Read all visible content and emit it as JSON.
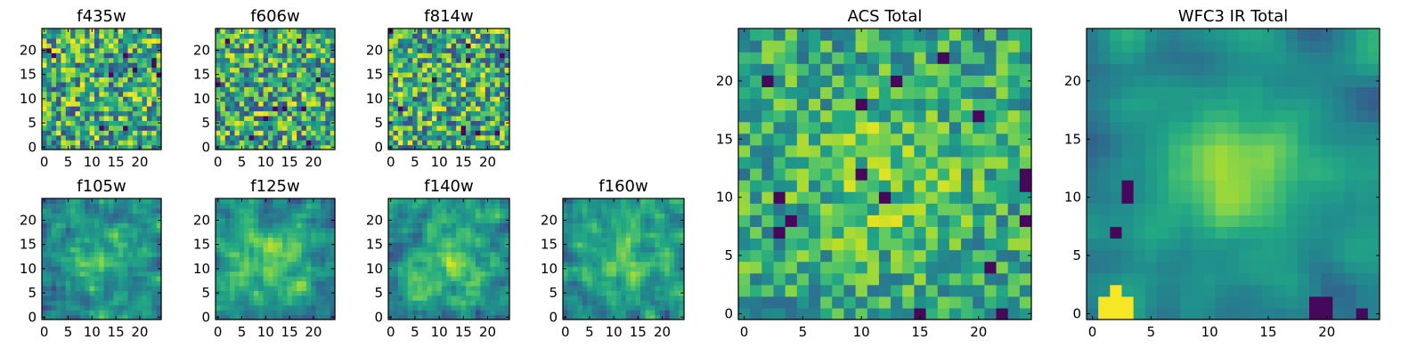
{
  "chart_data": [
    {
      "type": "heatmap",
      "title": "f435w",
      "nx": 25,
      "ny": 25,
      "xlim": [
        -0.5,
        24.5
      ],
      "ylim": [
        -0.5,
        24.5
      ],
      "xticks": [
        0,
        5,
        10,
        15,
        20
      ],
      "yticks": [
        0,
        5,
        10,
        15,
        20
      ],
      "colormap": "viridis",
      "seed": 11,
      "smooth": 0,
      "pattern": "noise"
    },
    {
      "type": "heatmap",
      "title": "f606w",
      "nx": 25,
      "ny": 25,
      "xlim": [
        -0.5,
        24.5
      ],
      "ylim": [
        -0.5,
        24.5
      ],
      "xticks": [
        0,
        5,
        10,
        15,
        20
      ],
      "yticks": [
        0,
        5,
        10,
        15,
        20
      ],
      "colormap": "viridis",
      "seed": 23,
      "smooth": 0,
      "pattern": "noise"
    },
    {
      "type": "heatmap",
      "title": "f814w",
      "nx": 25,
      "ny": 25,
      "xlim": [
        -0.5,
        24.5
      ],
      "ylim": [
        -0.5,
        24.5
      ],
      "xticks": [
        0,
        5,
        10,
        15,
        20
      ],
      "yticks": [
        0,
        5,
        10,
        15,
        20
      ],
      "colormap": "viridis",
      "seed": 37,
      "smooth": 0,
      "pattern": "noise"
    },
    {
      "type": "heatmap",
      "title": "f105w",
      "nx": 25,
      "ny": 25,
      "xlim": [
        -0.5,
        24.5
      ],
      "ylim": [
        -0.5,
        24.5
      ],
      "xticks": [
        0,
        5,
        10,
        15,
        20
      ],
      "yticks": [
        0,
        5,
        10,
        15,
        20
      ],
      "colormap": "viridis",
      "seed": 41,
      "smooth": 1,
      "pattern": "blob"
    },
    {
      "type": "heatmap",
      "title": "f125w",
      "nx": 25,
      "ny": 25,
      "xlim": [
        -0.5,
        24.5
      ],
      "ylim": [
        -0.5,
        24.5
      ],
      "xticks": [
        0,
        5,
        10,
        15,
        20
      ],
      "yticks": [
        0,
        5,
        10,
        15,
        20
      ],
      "colormap": "viridis",
      "seed": 53,
      "smooth": 1,
      "pattern": "blob"
    },
    {
      "type": "heatmap",
      "title": "f140w",
      "nx": 25,
      "ny": 25,
      "xlim": [
        -0.5,
        24.5
      ],
      "ylim": [
        -0.5,
        24.5
      ],
      "xticks": [
        0,
        5,
        10,
        15,
        20
      ],
      "yticks": [
        0,
        5,
        10,
        15,
        20
      ],
      "colormap": "viridis",
      "seed": 67,
      "smooth": 1,
      "pattern": "blob"
    },
    {
      "type": "heatmap",
      "title": "f160w",
      "nx": 25,
      "ny": 25,
      "xlim": [
        -0.5,
        24.5
      ],
      "ylim": [
        -0.5,
        24.5
      ],
      "xticks": [
        0,
        5,
        10,
        15,
        20
      ],
      "yticks": [
        0,
        5,
        10,
        15,
        20
      ],
      "colormap": "viridis",
      "seed": 79,
      "smooth": 1,
      "pattern": "blob"
    },
    {
      "type": "heatmap",
      "title": "ACS Total",
      "nx": 25,
      "ny": 25,
      "xlim": [
        -0.5,
        24.5
      ],
      "ylim": [
        -0.5,
        24.5
      ],
      "xticks": [
        0,
        5,
        10,
        15,
        20
      ],
      "yticks": [
        0,
        5,
        10,
        15,
        20
      ],
      "colormap": "viridis",
      "seed": 97,
      "smooth": 0,
      "pattern": "acs"
    },
    {
      "type": "heatmap",
      "title": "WFC3 IR Total",
      "nx": 25,
      "ny": 25,
      "xlim": [
        -0.5,
        24.5
      ],
      "ylim": [
        -0.5,
        24.5
      ],
      "xticks": [
        0,
        5,
        10,
        15,
        20
      ],
      "yticks": [
        0,
        5,
        10,
        15,
        20
      ],
      "colormap": "viridis",
      "seed": 113,
      "smooth": 2,
      "pattern": "ir"
    }
  ]
}
